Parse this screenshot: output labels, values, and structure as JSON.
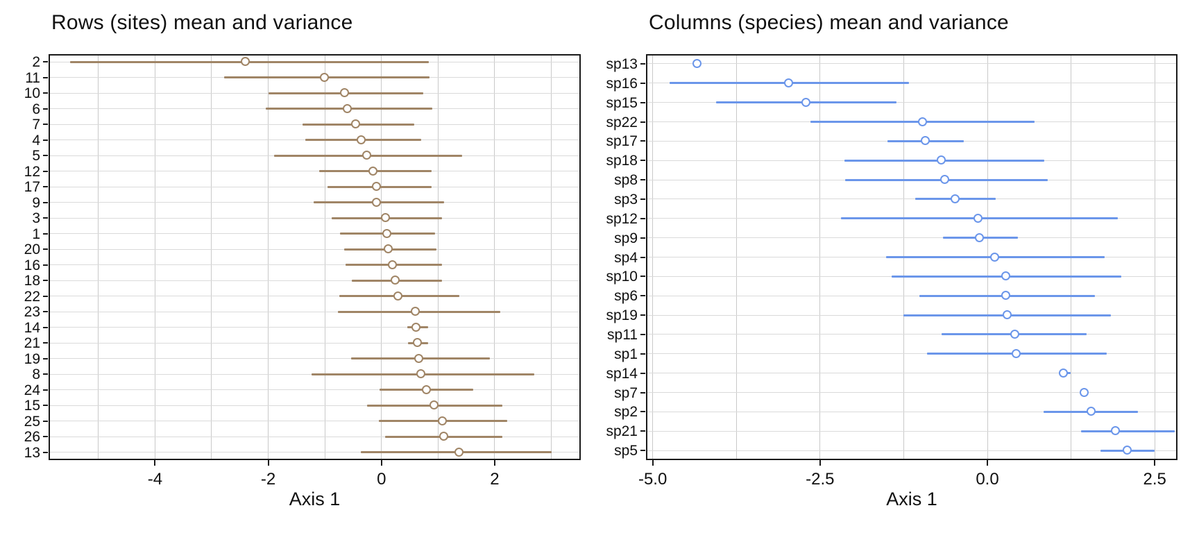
{
  "chart_data": [
    {
      "type": "scatter",
      "subtype": "pointrange-horizontal",
      "title": "Rows (sites) mean and variance",
      "xlabel": "Axis 1",
      "ylabel": "",
      "xlim": [
        -5.88,
        3.52
      ],
      "xticks": [
        -4,
        -2,
        0,
        2
      ],
      "xtick_labels": [
        "-4",
        "-2",
        "0",
        "2"
      ],
      "grid": {
        "min": -5,
        "max": 3,
        "step": 1
      },
      "legend": "none",
      "point_color": "#a08566",
      "categories": [
        "2",
        "11",
        "10",
        "6",
        "7",
        "4",
        "5",
        "12",
        "17",
        "9",
        "3",
        "1",
        "20",
        "16",
        "18",
        "22",
        "23",
        "14",
        "21",
        "19",
        "8",
        "24",
        "15",
        "25",
        "26",
        "13"
      ],
      "series": [
        {
          "name": "mean",
          "values": [
            -2.4,
            -1.0,
            -0.65,
            -0.6,
            -0.45,
            -0.35,
            -0.25,
            -0.15,
            -0.08,
            -0.08,
            0.08,
            0.1,
            0.13,
            0.2,
            0.25,
            0.3,
            0.6,
            0.62,
            0.64,
            0.66,
            0.7,
            0.8,
            0.94,
            1.08,
            1.1,
            1.37
          ]
        },
        {
          "name": "lo",
          "values": [
            -5.5,
            -2.78,
            -2.0,
            -2.05,
            -1.4,
            -1.35,
            -1.9,
            -1.1,
            -0.95,
            -1.2,
            -0.88,
            -0.73,
            -0.66,
            -0.64,
            -0.53,
            -0.75,
            -0.77,
            0.45,
            0.47,
            -0.54,
            -1.24,
            -0.04,
            -0.25,
            -0.05,
            0.06,
            -0.36
          ]
        },
        {
          "name": "hi",
          "values": [
            0.83,
            0.85,
            0.74,
            0.9,
            0.58,
            0.7,
            1.43,
            0.88,
            0.88,
            1.1,
            1.07,
            0.95,
            0.97,
            1.07,
            1.07,
            1.38,
            2.1,
            0.82,
            0.83,
            1.92,
            2.7,
            1.62,
            2.14,
            2.22,
            2.14,
            3.0
          ]
        }
      ]
    },
    {
      "type": "scatter",
      "subtype": "pointrange-horizontal",
      "title": "Columns (species) mean and variance",
      "xlabel": "Axis 1",
      "ylabel": "",
      "xlim": [
        -5.1,
        2.84
      ],
      "xticks": [
        -5.0,
        -2.5,
        0.0,
        2.5
      ],
      "xtick_labels": [
        "-5.0",
        "-2.5",
        "0.0",
        "2.5"
      ],
      "grid": {
        "min": -5,
        "max": 2.5,
        "step": 1.25
      },
      "legend": "none",
      "point_color": "#6b96ea",
      "categories": [
        "sp13",
        "sp16",
        "sp15",
        "sp22",
        "sp17",
        "sp18",
        "sp8",
        "sp3",
        "sp12",
        "sp9",
        "sp4",
        "sp10",
        "sp6",
        "sp19",
        "sp11",
        "sp1",
        "sp14",
        "sp7",
        "sp2",
        "sp21",
        "sp5"
      ],
      "series": [
        {
          "name": "mean",
          "values": [
            -4.33,
            -2.96,
            -2.71,
            -0.96,
            -0.92,
            -0.68,
            -0.63,
            -0.48,
            -0.14,
            -0.11,
            0.11,
            0.28,
            0.28,
            0.3,
            0.41,
            0.44,
            1.14,
            1.45,
            1.55,
            1.92,
            2.09
          ]
        },
        {
          "name": "lo",
          "values": [
            -4.33,
            -4.75,
            -4.05,
            -2.64,
            -1.49,
            -2.14,
            -2.13,
            -1.08,
            -2.19,
            -0.66,
            -1.51,
            -1.43,
            -1.02,
            -1.25,
            -0.68,
            -0.9,
            1.07,
            1.45,
            0.84,
            1.4,
            1.69
          ]
        },
        {
          "name": "hi",
          "values": [
            -4.33,
            -1.17,
            -1.36,
            0.7,
            -0.35,
            0.85,
            0.9,
            0.12,
            1.95,
            0.46,
            1.75,
            2.0,
            1.61,
            1.84,
            1.48,
            1.78,
            1.24,
            1.45,
            2.25,
            2.8,
            2.5
          ]
        }
      ]
    }
  ]
}
